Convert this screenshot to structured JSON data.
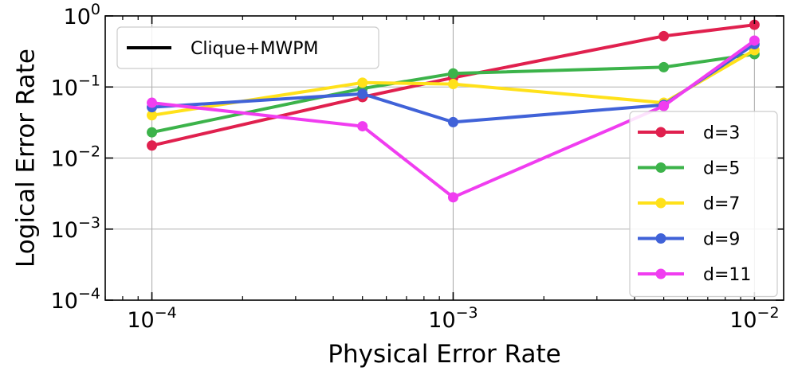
{
  "chart_data": {
    "type": "line",
    "x_scale": "log",
    "y_scale": "log",
    "xlabel": "Physical Error Rate",
    "ylabel": "Logical Error Rate",
    "xlim": [
      7e-05,
      0.0125
    ],
    "ylim": [
      0.0001,
      1
    ],
    "x_ticks": [
      {
        "value": 0.0001,
        "base": "10",
        "exp": "−4"
      },
      {
        "value": 0.001,
        "base": "10",
        "exp": "−3"
      },
      {
        "value": 0.01,
        "base": "10",
        "exp": "−2"
      }
    ],
    "y_ticks": [
      {
        "value": 1,
        "base": "10",
        "exp": "0"
      },
      {
        "value": 0.1,
        "base": "10",
        "exp": "−1"
      },
      {
        "value": 0.01,
        "base": "10",
        "exp": "−2"
      },
      {
        "value": 0.001,
        "base": "10",
        "exp": "−3"
      },
      {
        "value": 0.0001,
        "base": "10",
        "exp": "−4"
      }
    ],
    "grid": true,
    "x": [
      0.0001,
      0.0005,
      0.001,
      0.005,
      0.01
    ],
    "series": [
      {
        "name": "d=3",
        "color": "#e0204e",
        "values": [
          0.015,
          0.072,
          0.135,
          0.52,
          0.75
        ]
      },
      {
        "name": "d=5",
        "color": "#3cb34a",
        "values": [
          0.023,
          0.095,
          0.155,
          0.19,
          0.29
        ]
      },
      {
        "name": "d=7",
        "color": "#ffe11a",
        "values": [
          0.04,
          0.115,
          0.11,
          0.06,
          0.33
        ]
      },
      {
        "name": "d=9",
        "color": "#4062d8",
        "values": [
          0.052,
          0.08,
          0.032,
          0.056,
          0.4
        ]
      },
      {
        "name": "d=11",
        "color": "#f03df0",
        "values": [
          0.06,
          0.028,
          0.0028,
          0.054,
          0.45
        ]
      }
    ],
    "style_legend": {
      "label": "Clique+MWPM",
      "placement": "top-left"
    },
    "series_legend_placement": "right"
  }
}
